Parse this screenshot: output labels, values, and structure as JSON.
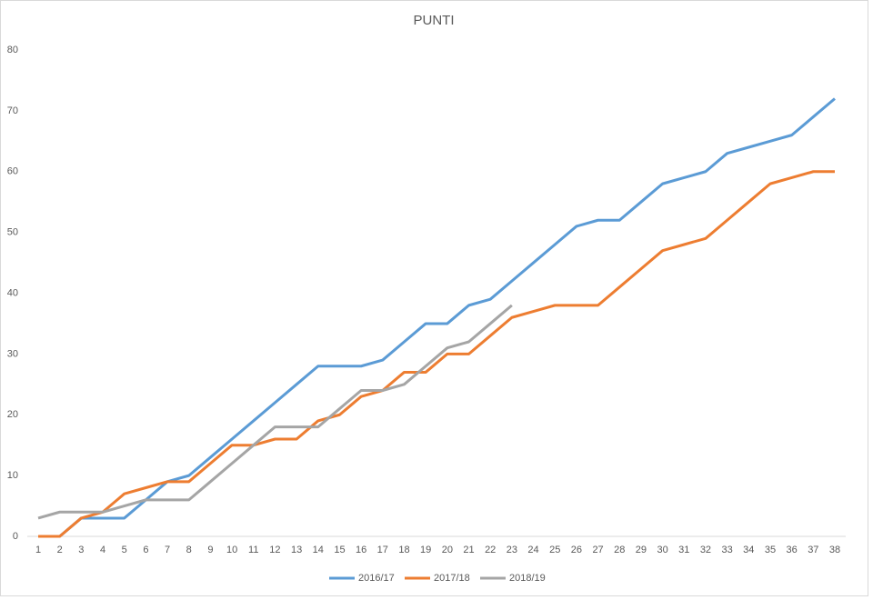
{
  "chart_data": {
    "type": "line",
    "title": "PUNTI",
    "categories": [
      "1",
      "2",
      "3",
      "4",
      "5",
      "6",
      "7",
      "8",
      "9",
      "10",
      "11",
      "12",
      "13",
      "14",
      "15",
      "16",
      "17",
      "18",
      "19",
      "20",
      "21",
      "22",
      "23",
      "24",
      "25",
      "26",
      "27",
      "28",
      "29",
      "30",
      "31",
      "32",
      "33",
      "34",
      "35",
      "36",
      "37",
      "38"
    ],
    "series": [
      {
        "name": "2016/17",
        "color": "#5b9bd5",
        "values": [
          0,
          0,
          3,
          3,
          3,
          6,
          9,
          10,
          13,
          16,
          19,
          22,
          25,
          28,
          28,
          28,
          29,
          32,
          35,
          35,
          38,
          39,
          42,
          45,
          48,
          51,
          52,
          52,
          55,
          58,
          59,
          60,
          63,
          64,
          65,
          66,
          69,
          72
        ]
      },
      {
        "name": "2017/18",
        "color": "#ed7d31",
        "values": [
          0,
          0,
          3,
          4,
          7,
          8,
          9,
          9,
          12,
          15,
          15,
          16,
          16,
          19,
          20,
          23,
          24,
          27,
          27,
          30,
          30,
          33,
          36,
          37,
          38,
          38,
          38,
          41,
          44,
          47,
          48,
          49,
          52,
          55,
          58,
          59,
          60,
          60
        ]
      },
      {
        "name": "2018/19",
        "color": "#a5a5a5",
        "values": [
          3,
          4,
          4,
          4,
          5,
          6,
          6,
          6,
          9,
          12,
          15,
          18,
          18,
          18,
          21,
          24,
          24,
          25,
          28,
          31,
          32,
          35,
          38,
          null,
          null,
          null,
          null,
          null,
          null,
          null,
          null,
          null,
          null,
          null,
          null,
          null,
          null,
          null
        ]
      }
    ],
    "ylim": [
      0,
      80
    ],
    "yticks": [
      0,
      10,
      20,
      30,
      40,
      50,
      60,
      70,
      80
    ],
    "grid": false,
    "legend": "bottom"
  }
}
